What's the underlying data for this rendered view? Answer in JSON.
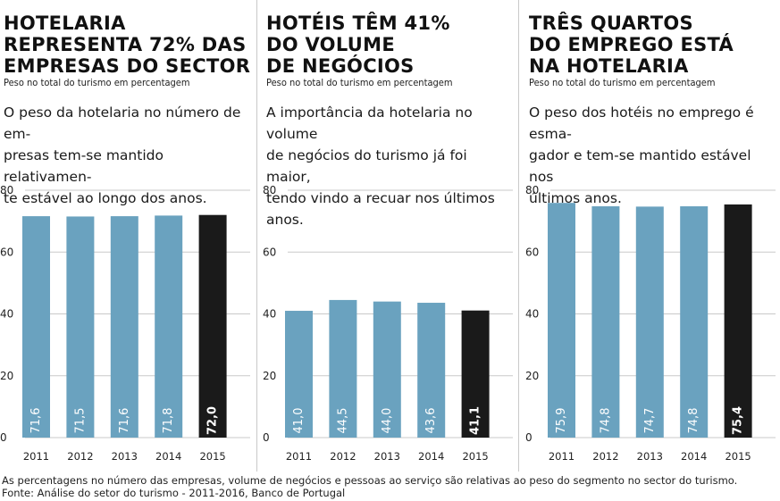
{
  "panels": [
    {
      "title_lines": [
        "HOTELARIA",
        "REPRESENTA 72% DAS",
        "EMPRESAS DO SECTOR"
      ],
      "subtitle": "Peso no total do turismo em percentagem",
      "desc_lines": [
        "O peso da hotelaria no número de em-",
        "presas tem-se mantido relativamen-",
        "te estável ao longo dos anos."
      ]
    },
    {
      "title_lines": [
        "HOTÉIS TÊM 41%",
        "DO VOLUME",
        "DE NEGÓCIOS"
      ],
      "subtitle": "Peso no total do turismo em percentagem",
      "desc_lines": [
        "A importância da hotelaria no volume",
        "de negócios do turismo já foi maior,",
        "tendo vindo a recuar nos últimos anos."
      ]
    },
    {
      "title_lines": [
        "TRÊS QUARTOS",
        "DO EMPREGO ESTÁ",
        "NA HOTELARIA"
      ],
      "subtitle": "Peso no total do turismo em percentagem",
      "desc_lines": [
        "O peso dos hotéis no emprego é esma-",
        "gador e tem-se mantido estável nos",
        "últimos anos."
      ]
    }
  ],
  "chart_data": [
    {
      "type": "bar",
      "title": "HOTELARIA REPRESENTA 72% DAS EMPRESAS DO SECTOR",
      "ylabel": "Peso no total do turismo em percentagem",
      "categories": [
        "2011",
        "2012",
        "2013",
        "2014",
        "2015"
      ],
      "values": [
        71.6,
        71.5,
        71.6,
        71.8,
        72.0
      ],
      "value_labels": [
        "71,6",
        "71,5",
        "71,6",
        "71,8",
        "72,0"
      ],
      "ylim": [
        0,
        80
      ],
      "yticks": [
        "0",
        "20",
        "40",
        "60",
        "80"
      ],
      "ytick_values": [
        0,
        20,
        40,
        60,
        80
      ],
      "highlight_index": 4
    },
    {
      "type": "bar",
      "title": "HOTÉIS TÊM 41% DO VOLUME DE NEGÓCIOS",
      "ylabel": "Peso no total do turismo em percentagem",
      "categories": [
        "2011",
        "2012",
        "2013",
        "2014",
        "2015"
      ],
      "values": [
        41.0,
        44.5,
        44.0,
        43.6,
        41.1
      ],
      "value_labels": [
        "41,0",
        "44,5",
        "44,0",
        "43,6",
        "41,1"
      ],
      "ylim": [
        0,
        80
      ],
      "yticks": [
        "0",
        "20",
        "40",
        "60",
        "80"
      ],
      "ytick_values": [
        0,
        20,
        40,
        60,
        80
      ],
      "highlight_index": 4
    },
    {
      "type": "bar",
      "title": "TRÊS QUARTOS DO EMPREGO ESTÁ NA HOTELARIA",
      "ylabel": "Peso no total do turismo em percentagem",
      "categories": [
        "2011",
        "2012",
        "2013",
        "2014",
        "2015"
      ],
      "values": [
        75.9,
        74.8,
        74.7,
        74.8,
        75.4
      ],
      "value_labels": [
        "75,9",
        "74,8",
        "74,7",
        "74,8",
        "75,4"
      ],
      "ylim": [
        0,
        80
      ],
      "yticks": [
        "0",
        "20",
        "40",
        "60",
        "80"
      ],
      "ytick_values": [
        0,
        20,
        40,
        60,
        80
      ],
      "highlight_index": 4
    }
  ],
  "colors": {
    "bar": "#6aa2bf",
    "bar_highlight": "#1a1a1a",
    "grid": "#c9c9c9",
    "label_on_bar": "#ffffff"
  },
  "footer": {
    "note": "As percentagens no número das empresas, volume de negócios e pessoas ao serviço são relativas ao peso do segmento no sector do turismo.",
    "source": "Fonte: Análise do setor do turismo - 2011-2016, Banco de Portugal"
  }
}
